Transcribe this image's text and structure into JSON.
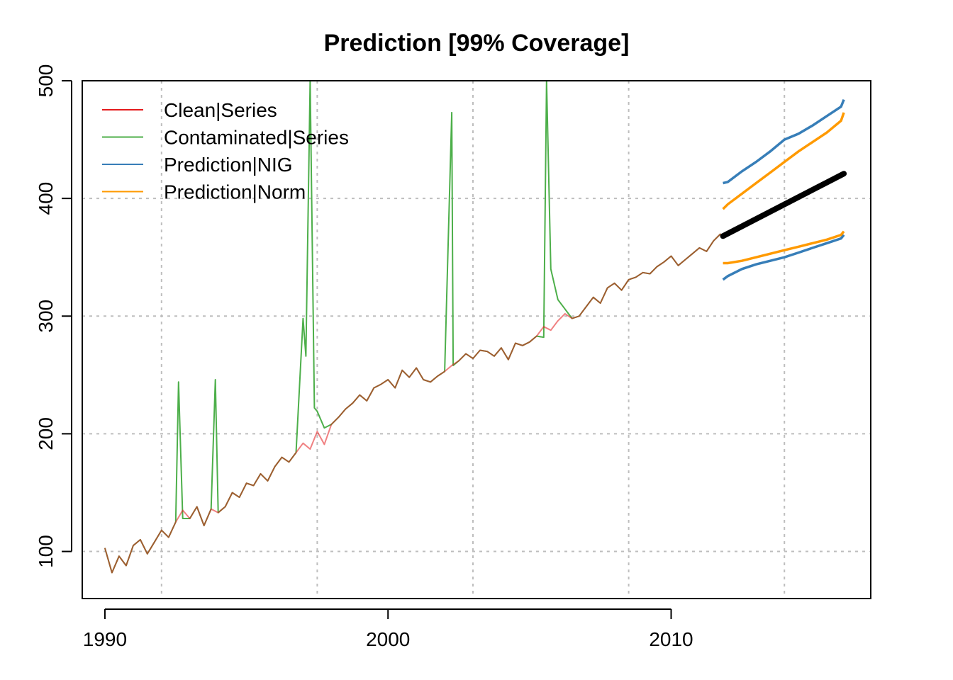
{
  "chart_data": {
    "type": "line",
    "title": "Prediction [99% Coverage]",
    "xlabel": "",
    "ylabel": "",
    "xlim": [
      1989.2,
      2017.05
    ],
    "ylim": [
      60,
      500
    ],
    "x_ticks": [
      1990,
      2000,
      2010
    ],
    "x_tick_labels": [
      "1990",
      "2000",
      "2010"
    ],
    "y_ticks": [
      100,
      200,
      300,
      400,
      500
    ],
    "y_tick_labels": [
      "100",
      "200",
      "300",
      "400",
      "500"
    ],
    "grid": true,
    "grid_x": [
      1992,
      1997.5,
      2003,
      2008.5,
      2014
    ],
    "grid_y": [
      100,
      200,
      300,
      400,
      500
    ],
    "legend_position": "top-left",
    "colors": {
      "clean": "#e41a1c",
      "contaminated": "#4daf4a",
      "nig": "#377eb8",
      "norm": "#ff9a00",
      "point": "#000000",
      "grid": "#bebebe"
    },
    "legend": [
      "Clean|Series",
      "Contaminated|Series",
      "Prediction|NIG",
      "Prediction|Norm"
    ],
    "series": [
      {
        "name": "Clean|Series",
        "x": [
          1990.0,
          1990.25,
          1990.5,
          1990.75,
          1991.0,
          1991.25,
          1991.5,
          1991.75,
          1992.0,
          1992.25,
          1992.5,
          1992.75,
          1993.0,
          1993.25,
          1993.5,
          1993.75,
          1994.0,
          1994.25,
          1994.5,
          1994.75,
          1995.0,
          1995.25,
          1995.5,
          1995.75,
          1996.0,
          1996.25,
          1996.5,
          1996.75,
          1997.0,
          1997.25,
          1997.5,
          1997.75,
          1998.0,
          1998.25,
          1998.5,
          1998.75,
          1999.0,
          1999.25,
          1999.5,
          1999.75,
          2000.0,
          2000.25,
          2000.5,
          2000.75,
          2001.0,
          2001.25,
          2001.5,
          2001.75,
          2002.0,
          2002.25,
          2002.5,
          2002.75,
          2003.0,
          2003.25,
          2003.5,
          2003.75,
          2004.0,
          2004.25,
          2004.5,
          2004.75,
          2005.0,
          2005.25,
          2005.5,
          2005.75,
          2006.0,
          2006.25,
          2006.5,
          2006.75,
          2007.0,
          2007.25,
          2007.5,
          2007.75,
          2008.0,
          2008.25,
          2008.5,
          2008.75,
          2009.0,
          2009.25,
          2009.5,
          2009.75,
          2010.0,
          2010.25,
          2010.5,
          2010.75,
          2011.0,
          2011.25,
          2011.5,
          2011.75
        ],
        "y": [
          103,
          82,
          96,
          88,
          105,
          110,
          98,
          108,
          118,
          112,
          125,
          135,
          128,
          138,
          122,
          136,
          133,
          138,
          150,
          146,
          158,
          156,
          166,
          160,
          172,
          180,
          176,
          184,
          192,
          187,
          202,
          191,
          208,
          214,
          221,
          226,
          233,
          228,
          239,
          242,
          246,
          239,
          254,
          248,
          256,
          246,
          244,
          249,
          253,
          258,
          262,
          268,
          264,
          271,
          270,
          266,
          273,
          263,
          277,
          275,
          278,
          283,
          291,
          288,
          296,
          302,
          298,
          300,
          308,
          316,
          311,
          324,
          328,
          322,
          331,
          333,
          337,
          336,
          342,
          346,
          351,
          343,
          348,
          353,
          358,
          355,
          364,
          370
        ]
      },
      {
        "name": "Contaminated|Series",
        "x": [
          1990.0,
          1990.25,
          1990.5,
          1990.75,
          1991.0,
          1991.25,
          1991.5,
          1991.75,
          1992.0,
          1992.25,
          1992.5,
          1992.6,
          1992.75,
          1993.0,
          1993.25,
          1993.5,
          1993.75,
          1993.9,
          1994.0,
          1994.25,
          1994.5,
          1994.75,
          1995.0,
          1995.25,
          1995.5,
          1995.75,
          1996.0,
          1996.25,
          1996.5,
          1996.75,
          1997.0,
          1997.1,
          1997.25,
          1997.4,
          1997.5,
          1997.75,
          1998.0,
          1998.25,
          1998.5,
          1998.75,
          1999.0,
          1999.25,
          1999.5,
          1999.75,
          2000.0,
          2000.25,
          2000.5,
          2000.75,
          2001.0,
          2001.25,
          2001.5,
          2001.75,
          2002.0,
          2002.25,
          2002.3,
          2002.5,
          2002.75,
          2003.0,
          2003.25,
          2003.5,
          2003.75,
          2004.0,
          2004.25,
          2004.5,
          2004.75,
          2005.0,
          2005.25,
          2005.5,
          2005.6,
          2005.75,
          2006.0,
          2006.25,
          2006.5,
          2006.75,
          2007.0,
          2007.25,
          2007.5,
          2007.75,
          2008.0,
          2008.25,
          2008.5,
          2008.75,
          2009.0,
          2009.25,
          2009.5,
          2009.75,
          2010.0,
          2010.25,
          2010.5,
          2010.75,
          2011.0,
          2011.25,
          2011.5,
          2011.75
        ],
        "y": [
          103,
          82,
          96,
          88,
          105,
          110,
          98,
          108,
          118,
          112,
          125,
          244,
          128,
          128,
          138,
          122,
          136,
          246,
          133,
          138,
          150,
          146,
          158,
          156,
          166,
          160,
          172,
          180,
          176,
          184,
          298,
          266,
          500,
          222,
          219,
          205,
          208,
          214,
          221,
          226,
          233,
          228,
          239,
          242,
          246,
          239,
          254,
          248,
          256,
          246,
          244,
          249,
          253,
          473,
          258,
          262,
          268,
          264,
          271,
          270,
          266,
          273,
          263,
          277,
          275,
          278,
          283,
          282,
          500,
          340,
          314,
          306,
          298,
          300,
          308,
          316,
          311,
          324,
          328,
          322,
          331,
          333,
          337,
          336,
          342,
          346,
          351,
          343,
          348,
          353,
          358,
          355,
          364,
          370
        ]
      },
      {
        "name": "Prediction|NIG",
        "x": [
          2011.83,
          2012.0,
          2012.5,
          2013.0,
          2013.5,
          2014.0,
          2014.5,
          2015.0,
          2015.5,
          2016.0,
          2016.1
        ],
        "upper": [
          413,
          414,
          423,
          431,
          440,
          450,
          455,
          462,
          470,
          478,
          484
        ],
        "lower": [
          331,
          334,
          340,
          344,
          347,
          350,
          354,
          358,
          362,
          366,
          369
        ]
      },
      {
        "name": "Prediction|Norm",
        "x": [
          2011.83,
          2012.0,
          2012.5,
          2013.0,
          2013.5,
          2014.0,
          2014.5,
          2015.0,
          2015.5,
          2016.0,
          2016.1
        ],
        "upper": [
          391,
          395,
          404,
          413,
          422,
          431,
          440,
          448,
          456,
          466,
          473
        ],
        "lower": [
          345,
          345,
          347,
          350,
          353,
          356,
          359,
          362,
          365,
          369,
          372
        ]
      },
      {
        "name": "",
        "type": "point-forecast",
        "x": [
          2011.83,
          2016.1
        ],
        "y": [
          368,
          421
        ]
      }
    ]
  }
}
